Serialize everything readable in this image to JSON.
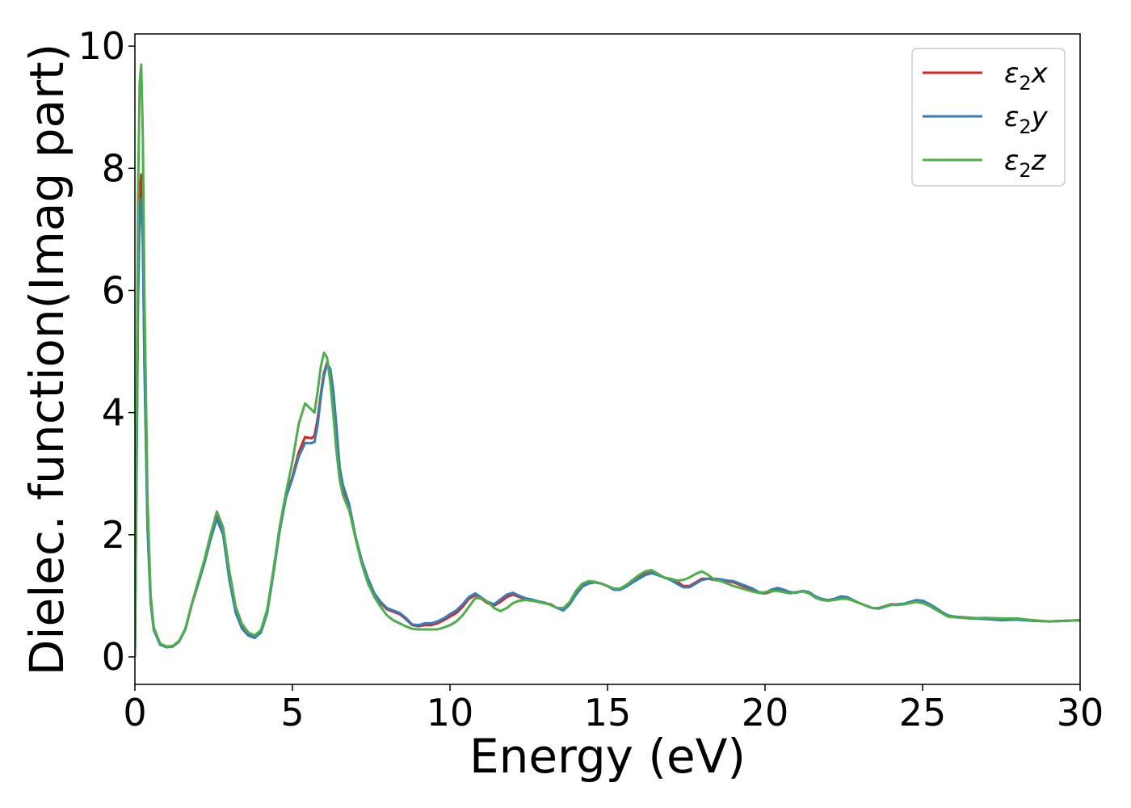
{
  "chart_data": {
    "type": "line",
    "title": "",
    "xlabel": "Energy (eV)",
    "ylabel": "Dielec. function(Imag part)",
    "xlim": [
      0,
      30
    ],
    "ylim": [
      -0.45,
      10.2
    ],
    "xticks": [
      0,
      5,
      10,
      15,
      20,
      25,
      30
    ],
    "yticks": [
      0,
      2,
      4,
      6,
      8,
      10
    ],
    "grid": false,
    "legend": {
      "position": "top-right",
      "entries": [
        "ε2x",
        "ε2y",
        "ε2z"
      ]
    },
    "series": [
      {
        "name": "ε2x",
        "color": "#d62728",
        "x": [
          0,
          0.05,
          0.1,
          0.15,
          0.2,
          0.25,
          0.3,
          0.4,
          0.5,
          0.6,
          0.8,
          1.0,
          1.2,
          1.4,
          1.6,
          1.8,
          2.0,
          2.2,
          2.4,
          2.6,
          2.8,
          3.0,
          3.2,
          3.4,
          3.6,
          3.8,
          4.0,
          4.2,
          4.4,
          4.6,
          4.8,
          5.0,
          5.2,
          5.4,
          5.6,
          5.7,
          5.8,
          5.9,
          6.0,
          6.1,
          6.2,
          6.3,
          6.4,
          6.5,
          6.6,
          6.8,
          7.0,
          7.2,
          7.4,
          7.6,
          7.8,
          8.0,
          8.2,
          8.4,
          8.6,
          8.8,
          9.0,
          9.2,
          9.4,
          9.6,
          9.8,
          10.0,
          10.2,
          10.4,
          10.6,
          10.8,
          11.0,
          11.2,
          11.4,
          11.6,
          11.8,
          12.0,
          12.2,
          12.4,
          12.6,
          12.8,
          13.0,
          13.2,
          13.4,
          13.6,
          13.8,
          14.0,
          14.2,
          14.4,
          14.6,
          14.8,
          15.0,
          15.2,
          15.4,
          15.6,
          15.8,
          16.0,
          16.2,
          16.4,
          16.6,
          16.8,
          17.0,
          17.2,
          17.4,
          17.6,
          17.8,
          18.0,
          18.2,
          18.4,
          18.6,
          18.8,
          19.0,
          19.2,
          19.4,
          19.6,
          19.8,
          20.0,
          20.2,
          20.4,
          20.6,
          20.8,
          21.0,
          21.2,
          21.4,
          21.6,
          21.8,
          22.0,
          22.2,
          22.4,
          22.6,
          22.8,
          23.0,
          23.2,
          23.4,
          23.6,
          23.8,
          24.0,
          24.2,
          24.4,
          24.6,
          24.8,
          25.0,
          25.2,
          25.4,
          25.6,
          25.8,
          26.0,
          26.5,
          27.0,
          27.5,
          28.0,
          28.5,
          29.0,
          29.5,
          30.0
        ],
        "y": [
          0.0,
          3.0,
          6.2,
          7.6,
          7.9,
          7.0,
          5.0,
          2.2,
          0.9,
          0.45,
          0.2,
          0.16,
          0.17,
          0.25,
          0.45,
          0.85,
          1.2,
          1.55,
          1.95,
          2.32,
          2.05,
          1.3,
          0.75,
          0.48,
          0.36,
          0.33,
          0.42,
          0.75,
          1.4,
          2.1,
          2.65,
          2.95,
          3.35,
          3.6,
          3.58,
          3.62,
          3.9,
          4.3,
          4.65,
          4.82,
          4.65,
          4.2,
          3.55,
          3.0,
          2.75,
          2.45,
          1.95,
          1.55,
          1.25,
          1.02,
          0.88,
          0.78,
          0.74,
          0.7,
          0.62,
          0.52,
          0.5,
          0.52,
          0.52,
          0.55,
          0.6,
          0.66,
          0.72,
          0.82,
          0.95,
          1.01,
          0.95,
          0.88,
          0.84,
          0.9,
          0.98,
          1.02,
          0.98,
          0.94,
          0.93,
          0.9,
          0.88,
          0.86,
          0.8,
          0.78,
          0.88,
          1.05,
          1.18,
          1.22,
          1.22,
          1.2,
          1.16,
          1.1,
          1.1,
          1.16,
          1.24,
          1.3,
          1.36,
          1.38,
          1.34,
          1.3,
          1.27,
          1.24,
          1.16,
          1.16,
          1.22,
          1.28,
          1.28,
          1.26,
          1.25,
          1.24,
          1.22,
          1.18,
          1.14,
          1.1,
          1.05,
          1.04,
          1.07,
          1.1,
          1.08,
          1.05,
          1.06,
          1.08,
          1.05,
          0.98,
          0.94,
          0.93,
          0.95,
          0.97,
          0.96,
          0.92,
          0.88,
          0.84,
          0.8,
          0.8,
          0.83,
          0.86,
          0.86,
          0.87,
          0.89,
          0.91,
          0.9,
          0.85,
          0.8,
          0.73,
          0.67,
          0.66,
          0.64,
          0.63,
          0.62,
          0.62,
          0.6,
          0.58,
          0.59,
          0.6
        ]
      },
      {
        "name": "ε2y",
        "color": "#377eb8",
        "x": [
          0,
          0.05,
          0.1,
          0.15,
          0.2,
          0.25,
          0.3,
          0.4,
          0.5,
          0.6,
          0.8,
          1.0,
          1.2,
          1.4,
          1.6,
          1.8,
          2.0,
          2.2,
          2.4,
          2.6,
          2.8,
          3.0,
          3.2,
          3.4,
          3.6,
          3.8,
          4.0,
          4.2,
          4.4,
          4.6,
          4.8,
          5.0,
          5.2,
          5.4,
          5.6,
          5.7,
          5.8,
          5.9,
          6.0,
          6.1,
          6.2,
          6.3,
          6.4,
          6.5,
          6.6,
          6.8,
          7.0,
          7.2,
          7.4,
          7.6,
          7.8,
          8.0,
          8.2,
          8.4,
          8.6,
          8.8,
          9.0,
          9.2,
          9.4,
          9.6,
          9.8,
          10.0,
          10.2,
          10.4,
          10.6,
          10.8,
          11.0,
          11.2,
          11.4,
          11.6,
          11.8,
          12.0,
          12.2,
          12.4,
          12.6,
          12.8,
          13.0,
          13.2,
          13.4,
          13.6,
          13.8,
          14.0,
          14.2,
          14.4,
          14.6,
          14.8,
          15.0,
          15.2,
          15.4,
          15.6,
          15.8,
          16.0,
          16.2,
          16.4,
          16.6,
          16.8,
          17.0,
          17.2,
          17.4,
          17.6,
          17.8,
          18.0,
          18.2,
          18.4,
          18.6,
          18.8,
          19.0,
          19.2,
          19.4,
          19.6,
          19.8,
          20.0,
          20.2,
          20.4,
          20.6,
          20.8,
          21.0,
          21.2,
          21.4,
          21.6,
          21.8,
          22.0,
          22.2,
          22.4,
          22.6,
          22.8,
          23.0,
          23.2,
          23.4,
          23.6,
          23.8,
          24.0,
          24.2,
          24.4,
          24.6,
          24.8,
          25.0,
          25.2,
          25.4,
          25.6,
          25.8,
          26.0,
          26.5,
          27.0,
          27.5,
          28.0,
          28.5,
          29.0,
          29.5,
          30.0
        ],
        "y": [
          0.0,
          2.8,
          5.8,
          7.2,
          7.5,
          6.8,
          4.8,
          2.1,
          0.88,
          0.44,
          0.2,
          0.16,
          0.17,
          0.25,
          0.45,
          0.85,
          1.18,
          1.52,
          1.92,
          2.26,
          2.0,
          1.25,
          0.72,
          0.46,
          0.35,
          0.31,
          0.4,
          0.72,
          1.38,
          2.08,
          2.62,
          2.92,
          3.28,
          3.5,
          3.5,
          3.52,
          3.8,
          4.25,
          4.6,
          4.8,
          4.72,
          4.35,
          3.75,
          3.1,
          2.82,
          2.5,
          1.98,
          1.58,
          1.28,
          1.04,
          0.9,
          0.8,
          0.76,
          0.72,
          0.64,
          0.53,
          0.52,
          0.55,
          0.55,
          0.58,
          0.63,
          0.7,
          0.76,
          0.86,
          0.98,
          1.04,
          0.97,
          0.9,
          0.86,
          0.94,
          1.02,
          1.05,
          1.0,
          0.96,
          0.94,
          0.91,
          0.89,
          0.85,
          0.8,
          0.76,
          0.86,
          1.02,
          1.15,
          1.2,
          1.22,
          1.2,
          1.16,
          1.1,
          1.1,
          1.15,
          1.22,
          1.28,
          1.34,
          1.37,
          1.34,
          1.3,
          1.26,
          1.2,
          1.14,
          1.14,
          1.2,
          1.26,
          1.28,
          1.28,
          1.27,
          1.25,
          1.24,
          1.2,
          1.16,
          1.12,
          1.06,
          1.05,
          1.1,
          1.13,
          1.1,
          1.06,
          1.05,
          1.08,
          1.06,
          0.99,
          0.95,
          0.93,
          0.95,
          0.99,
          0.98,
          0.93,
          0.88,
          0.84,
          0.8,
          0.79,
          0.82,
          0.85,
          0.86,
          0.87,
          0.9,
          0.93,
          0.92,
          0.87,
          0.81,
          0.74,
          0.68,
          0.66,
          0.63,
          0.62,
          0.6,
          0.61,
          0.59,
          0.58,
          0.59,
          0.6
        ]
      },
      {
        "name": "ε2z",
        "color": "#4daf4a",
        "x": [
          0,
          0.05,
          0.1,
          0.15,
          0.2,
          0.25,
          0.3,
          0.4,
          0.5,
          0.6,
          0.8,
          1.0,
          1.2,
          1.4,
          1.6,
          1.8,
          2.0,
          2.2,
          2.4,
          2.6,
          2.8,
          3.0,
          3.2,
          3.4,
          3.6,
          3.8,
          4.0,
          4.2,
          4.4,
          4.6,
          4.8,
          5.0,
          5.2,
          5.4,
          5.6,
          5.7,
          5.8,
          5.9,
          6.0,
          6.1,
          6.2,
          6.3,
          6.4,
          6.5,
          6.6,
          6.8,
          7.0,
          7.2,
          7.4,
          7.6,
          7.8,
          8.0,
          8.2,
          8.4,
          8.6,
          8.8,
          9.0,
          9.2,
          9.4,
          9.6,
          9.8,
          10.0,
          10.2,
          10.4,
          10.6,
          10.8,
          11.0,
          11.2,
          11.4,
          11.6,
          11.8,
          12.0,
          12.2,
          12.4,
          12.6,
          12.8,
          13.0,
          13.2,
          13.4,
          13.6,
          13.8,
          14.0,
          14.2,
          14.4,
          14.6,
          14.8,
          15.0,
          15.2,
          15.4,
          15.6,
          15.8,
          16.0,
          16.2,
          16.4,
          16.6,
          16.8,
          17.0,
          17.2,
          17.4,
          17.6,
          17.8,
          18.0,
          18.2,
          18.4,
          18.6,
          18.8,
          19.0,
          19.2,
          19.4,
          19.6,
          19.8,
          20.0,
          20.2,
          20.4,
          20.6,
          20.8,
          21.0,
          21.2,
          21.4,
          21.6,
          21.8,
          22.0,
          22.2,
          22.4,
          22.6,
          22.8,
          23.0,
          23.2,
          23.4,
          23.6,
          23.8,
          24.0,
          24.2,
          24.4,
          24.6,
          24.8,
          25.0,
          25.2,
          25.4,
          25.6,
          25.8,
          26.0,
          26.5,
          27.0,
          27.5,
          28.0,
          28.5,
          29.0,
          29.5,
          30.0
        ],
        "y": [
          0.0,
          3.6,
          7.6,
          9.4,
          9.7,
          8.6,
          6.0,
          2.6,
          1.0,
          0.48,
          0.22,
          0.17,
          0.18,
          0.26,
          0.46,
          0.86,
          1.22,
          1.58,
          2.0,
          2.38,
          2.12,
          1.4,
          0.82,
          0.54,
          0.4,
          0.35,
          0.44,
          0.78,
          1.44,
          2.15,
          2.7,
          3.2,
          3.82,
          4.15,
          4.05,
          4.0,
          4.35,
          4.75,
          4.98,
          4.9,
          4.5,
          3.95,
          3.35,
          2.9,
          2.65,
          2.4,
          1.95,
          1.52,
          1.2,
          0.98,
          0.82,
          0.68,
          0.6,
          0.55,
          0.5,
          0.46,
          0.45,
          0.45,
          0.45,
          0.45,
          0.48,
          0.52,
          0.58,
          0.68,
          0.82,
          0.96,
          0.96,
          0.9,
          0.8,
          0.75,
          0.8,
          0.88,
          0.92,
          0.93,
          0.92,
          0.9,
          0.88,
          0.85,
          0.8,
          0.8,
          0.9,
          1.08,
          1.2,
          1.24,
          1.23,
          1.2,
          1.16,
          1.12,
          1.12,
          1.18,
          1.26,
          1.34,
          1.4,
          1.42,
          1.36,
          1.3,
          1.28,
          1.25,
          1.26,
          1.3,
          1.36,
          1.4,
          1.34,
          1.26,
          1.24,
          1.2,
          1.16,
          1.13,
          1.1,
          1.07,
          1.05,
          1.06,
          1.08,
          1.08,
          1.06,
          1.04,
          1.06,
          1.07,
          1.04,
          0.97,
          0.93,
          0.92,
          0.93,
          0.95,
          0.95,
          0.92,
          0.88,
          0.84,
          0.8,
          0.8,
          0.83,
          0.85,
          0.85,
          0.86,
          0.88,
          0.9,
          0.88,
          0.84,
          0.78,
          0.72,
          0.66,
          0.65,
          0.63,
          0.64,
          0.63,
          0.63,
          0.6,
          0.58,
          0.59,
          0.6
        ]
      }
    ]
  }
}
